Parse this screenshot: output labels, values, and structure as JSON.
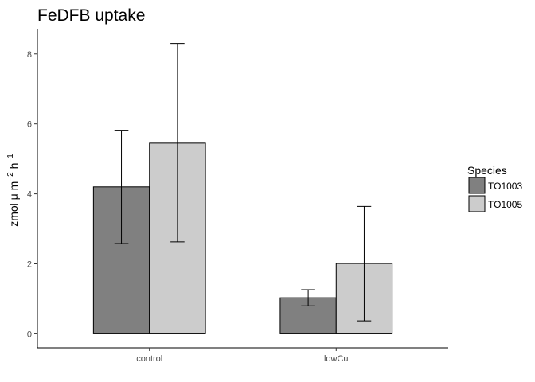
{
  "chart_data": {
    "type": "bar",
    "title": "FeDFB uptake",
    "xlabel": "",
    "ylabel": "zmol  μ m⁻² h⁻¹",
    "ylabel_parts": {
      "base": "zmol  μ m",
      "exp1": "−2",
      "mid": " h",
      "exp2": "−1"
    },
    "categories": [
      "control",
      "lowCu"
    ],
    "series": [
      {
        "name": "TO1003",
        "color": "#808080",
        "values": [
          4.2,
          1.03
        ],
        "error_low": [
          2.58,
          0.8
        ],
        "error_high": [
          5.82,
          1.26
        ]
      },
      {
        "name": "TO1005",
        "color": "#cccccc",
        "values": [
          5.45,
          2.01
        ],
        "error_low": [
          2.63,
          0.37
        ],
        "error_high": [
          8.3,
          3.64
        ]
      }
    ],
    "ylim": [
      -0.4,
      8.7
    ],
    "yticks": [
      0,
      2,
      4,
      6,
      8
    ],
    "grid": false,
    "legend": {
      "title": "Species",
      "placement": "right"
    }
  }
}
